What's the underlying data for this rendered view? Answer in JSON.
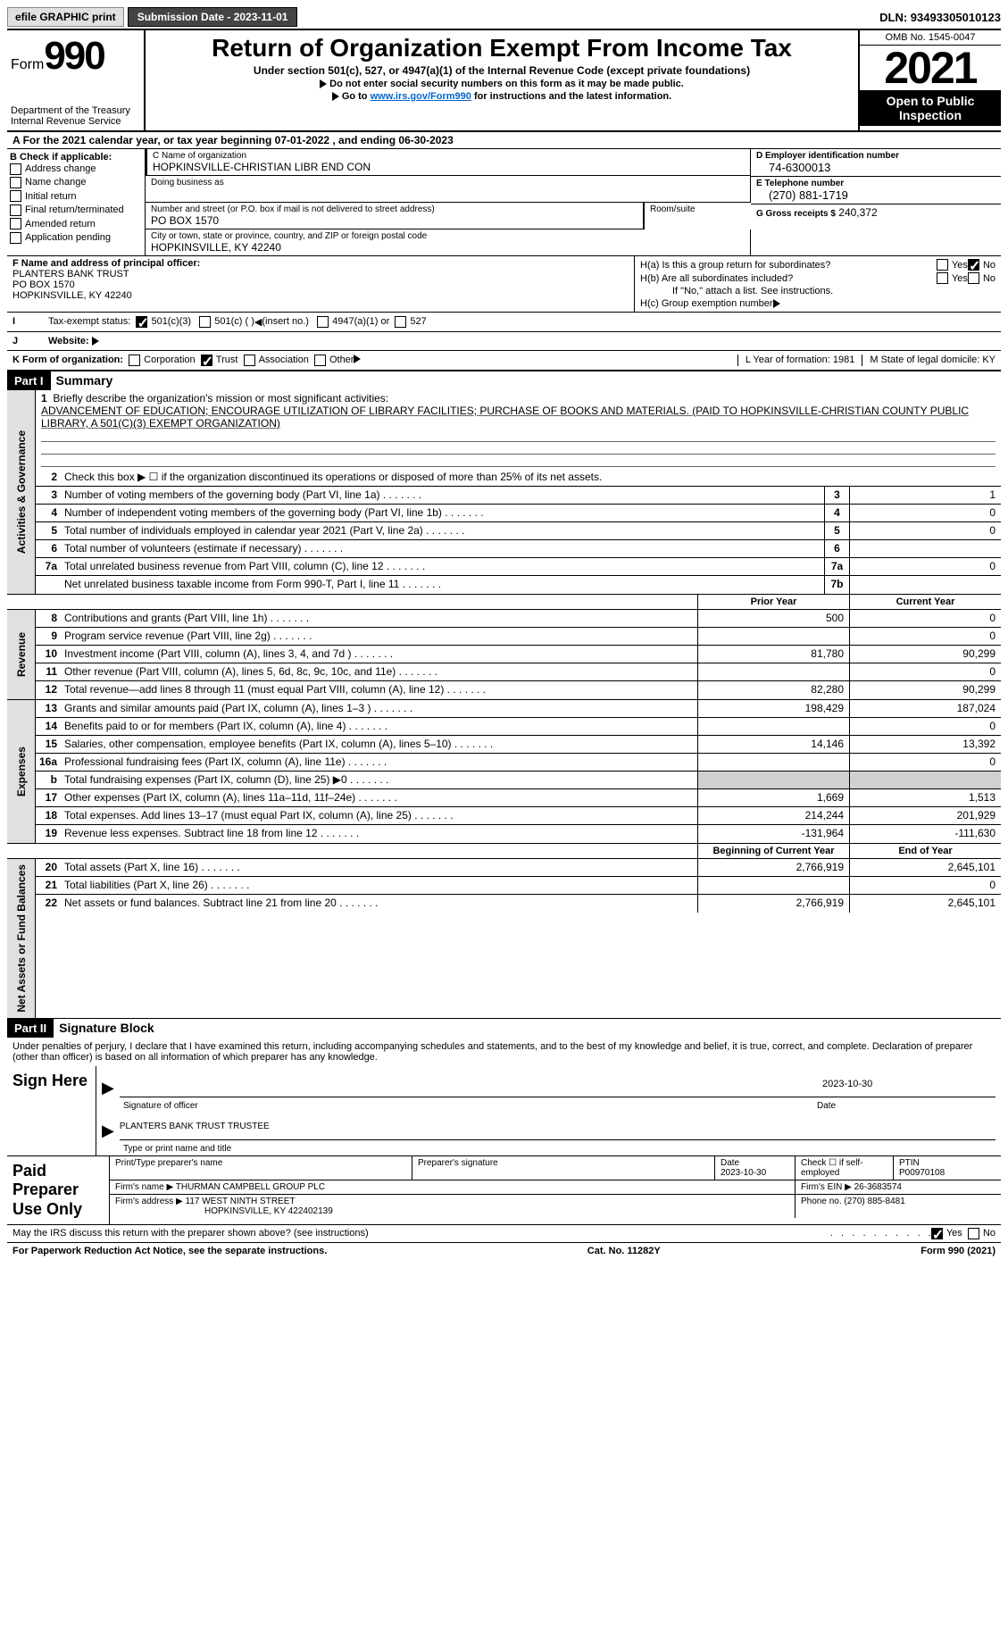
{
  "topbar": {
    "efile": "efile GRAPHIC print",
    "subdate_lbl": "Submission Date - 2023-11-01",
    "dln": "DLN: 93493305010123"
  },
  "header": {
    "form_word": "Form",
    "form_num": "990",
    "dept": "Department of the Treasury\nInternal Revenue Service",
    "title": "Return of Organization Exempt From Income Tax",
    "sub": "Under section 501(c), 527, or 4947(a)(1) of the Internal Revenue Code (except private foundations)",
    "note1": "Do not enter social security numbers on this form as it may be made public.",
    "note2_pre": "Go to ",
    "note2_link": "www.irs.gov/Form990",
    "note2_post": " for instructions and the latest information.",
    "omb": "OMB No. 1545-0047",
    "year": "2021",
    "open": "Open to Public Inspection"
  },
  "lineA": "For the 2021 calendar year, or tax year beginning 07-01-2022   , and ending 06-30-2023",
  "colB": {
    "hdr": "B Check if applicable:",
    "opts": [
      "Address change",
      "Name change",
      "Initial return",
      "Final return/terminated",
      "Amended return",
      "Application pending"
    ]
  },
  "colC": {
    "name_lbl": "C Name of organization",
    "name": "HOPKINSVILLE-CHRISTIAN LIBR END CON",
    "dba_lbl": "Doing business as",
    "addr_lbl": "Number and street (or P.O. box if mail is not delivered to street address)",
    "room_lbl": "Room/suite",
    "addr": "PO BOX 1570",
    "city_lbl": "City or town, state or province, country, and ZIP or foreign postal code",
    "city": "HOPKINSVILLE, KY  42240"
  },
  "colD": {
    "lbl": "D Employer identification number",
    "val": "74-6300013"
  },
  "colE": {
    "lbl": "E Telephone number",
    "val": "(270) 881-1719"
  },
  "colG": {
    "lbl": "G Gross receipts $",
    "val": "240,372"
  },
  "colF": {
    "lbl": "F Name and address of principal officer:",
    "name": "PLANTERS BANK TRUST",
    "addr": "PO BOX 1570",
    "city": "HOPKINSVILLE, KY  42240"
  },
  "colH": {
    "ha_lbl": "H(a)  Is this a group return for subordinates?",
    "hb_lbl": "H(b)  Are all subordinates included?",
    "hb_note": "If \"No,\" attach a list. See instructions.",
    "hc_lbl": "H(c)  Group exemption number",
    "yes": "Yes",
    "no": "No"
  },
  "rowI": {
    "lbl": "Tax-exempt status:",
    "o1": "501(c)(3)",
    "o2": "501(c) (  )",
    "o2b": "(insert no.)",
    "o3": "4947(a)(1) or",
    "o4": "527"
  },
  "rowJ": "Website:",
  "rowK": {
    "lbl": "K Form of organization:",
    "opts": [
      "Corporation",
      "Trust",
      "Association",
      "Other"
    ],
    "yof_lbl": "L Year of formation:",
    "yof": "1981",
    "state_lbl": "M State of legal domicile:",
    "state": "KY"
  },
  "part1": {
    "hdr": "Part I",
    "title": "Summary"
  },
  "summary": {
    "l1_lbl": "Briefly describe the organization's mission or most significant activities:",
    "l1_text": "ADVANCEMENT OF EDUCATION; ENCOURAGE UTILIZATION OF LIBRARY FACILITIES; PURCHASE OF BOOKS AND MATERIALS. (PAID TO HOPKINSVILLE-CHRISTIAN COUNTY PUBLIC LIBRARY, A 501(C)(3) EXEMPT ORGANIZATION)",
    "l2": "Check this box ▶ ☐  if the organization discontinued its operations or disposed of more than 25% of its net assets.",
    "lines": [
      {
        "n": "3",
        "d": "Number of voting members of the governing body (Part VI, line 1a)",
        "box": "3",
        "v": "1"
      },
      {
        "n": "4",
        "d": "Number of independent voting members of the governing body (Part VI, line 1b)",
        "box": "4",
        "v": "0"
      },
      {
        "n": "5",
        "d": "Total number of individuals employed in calendar year 2021 (Part V, line 2a)",
        "box": "5",
        "v": "0"
      },
      {
        "n": "6",
        "d": "Total number of volunteers (estimate if necessary)",
        "box": "6",
        "v": ""
      },
      {
        "n": "7a",
        "d": "Total unrelated business revenue from Part VIII, column (C), line 12",
        "box": "7a",
        "v": "0"
      },
      {
        "n": "",
        "d": "Net unrelated business taxable income from Form 990-T, Part I, line 11",
        "box": "7b",
        "v": ""
      }
    ],
    "prior_hdr": "Prior Year",
    "curr_hdr": "Current Year",
    "rev": [
      {
        "n": "8",
        "d": "Contributions and grants (Part VIII, line 1h)",
        "p": "500",
        "c": "0"
      },
      {
        "n": "9",
        "d": "Program service revenue (Part VIII, line 2g)",
        "p": "",
        "c": "0"
      },
      {
        "n": "10",
        "d": "Investment income (Part VIII, column (A), lines 3, 4, and 7d )",
        "p": "81,780",
        "c": "90,299"
      },
      {
        "n": "11",
        "d": "Other revenue (Part VIII, column (A), lines 5, 6d, 8c, 9c, 10c, and 11e)",
        "p": "",
        "c": "0"
      },
      {
        "n": "12",
        "d": "Total revenue—add lines 8 through 11 (must equal Part VIII, column (A), line 12)",
        "p": "82,280",
        "c": "90,299"
      }
    ],
    "exp": [
      {
        "n": "13",
        "d": "Grants and similar amounts paid (Part IX, column (A), lines 1–3 )",
        "p": "198,429",
        "c": "187,024"
      },
      {
        "n": "14",
        "d": "Benefits paid to or for members (Part IX, column (A), line 4)",
        "p": "",
        "c": "0"
      },
      {
        "n": "15",
        "d": "Salaries, other compensation, employee benefits (Part IX, column (A), lines 5–10)",
        "p": "14,146",
        "c": "13,392"
      },
      {
        "n": "16a",
        "d": "Professional fundraising fees (Part IX, column (A), line 11e)",
        "p": "",
        "c": "0"
      },
      {
        "n": "b",
        "d": "Total fundraising expenses (Part IX, column (D), line 25) ▶0",
        "p": "GRAY",
        "c": "GRAY"
      },
      {
        "n": "17",
        "d": "Other expenses (Part IX, column (A), lines 11a–11d, 11f–24e)",
        "p": "1,669",
        "c": "1,513"
      },
      {
        "n": "18",
        "d": "Total expenses. Add lines 13–17 (must equal Part IX, column (A), line 25)",
        "p": "214,244",
        "c": "201,929"
      },
      {
        "n": "19",
        "d": "Revenue less expenses. Subtract line 18 from line 12",
        "p": "-131,964",
        "c": "-111,630"
      }
    ],
    "na_hdr1": "Beginning of Current Year",
    "na_hdr2": "End of Year",
    "na": [
      {
        "n": "20",
        "d": "Total assets (Part X, line 16)",
        "p": "2,766,919",
        "c": "2,645,101"
      },
      {
        "n": "21",
        "d": "Total liabilities (Part X, line 26)",
        "p": "",
        "c": "0"
      },
      {
        "n": "22",
        "d": "Net assets or fund balances. Subtract line 21 from line 20",
        "p": "2,766,919",
        "c": "2,645,101"
      }
    ]
  },
  "vtabs": {
    "ag": "Activities & Governance",
    "rev": "Revenue",
    "exp": "Expenses",
    "na": "Net Assets or Fund Balances"
  },
  "part2": {
    "hdr": "Part II",
    "title": "Signature Block"
  },
  "sig": {
    "decl": "Under penalties of perjury, I declare that I have examined this return, including accompanying schedules and statements, and to the best of my knowledge and belief, it is true, correct, and complete. Declaration of preparer (other than officer) is based on all information of which preparer has any knowledge.",
    "sign_here": "Sign Here",
    "sig_date": "2023-10-30",
    "sig_lbl": "Signature of officer",
    "date_lbl": "Date",
    "name": "PLANTERS BANK TRUST  TRUSTEE",
    "name_lbl": "Type or print name and title"
  },
  "paid": {
    "hdr": "Paid Preparer Use Only",
    "c1": "Print/Type preparer's name",
    "c2": "Preparer's signature",
    "c3_lbl": "Date",
    "c3": "2023-10-30",
    "c4_lbl": "Check ☐ if self-employed",
    "c5_lbl": "PTIN",
    "c5": "P00970108",
    "firm_lbl": "Firm's name    ▶",
    "firm": "THURMAN CAMPBELL GROUP PLC",
    "ein_lbl": "Firm's EIN ▶",
    "ein": "26-3683574",
    "addr_lbl": "Firm's address ▶",
    "addr1": "117 WEST NINTH STREET",
    "addr2": "HOPKINSVILLE, KY  422402139",
    "phone_lbl": "Phone no.",
    "phone": "(270) 885-8481"
  },
  "bottom": {
    "q": "May the IRS discuss this return with the preparer shown above? (see instructions)",
    "yes": "Yes",
    "no": "No"
  },
  "footer": {
    "l": "For Paperwork Reduction Act Notice, see the separate instructions.",
    "m": "Cat. No. 11282Y",
    "r": "Form 990 (2021)"
  }
}
